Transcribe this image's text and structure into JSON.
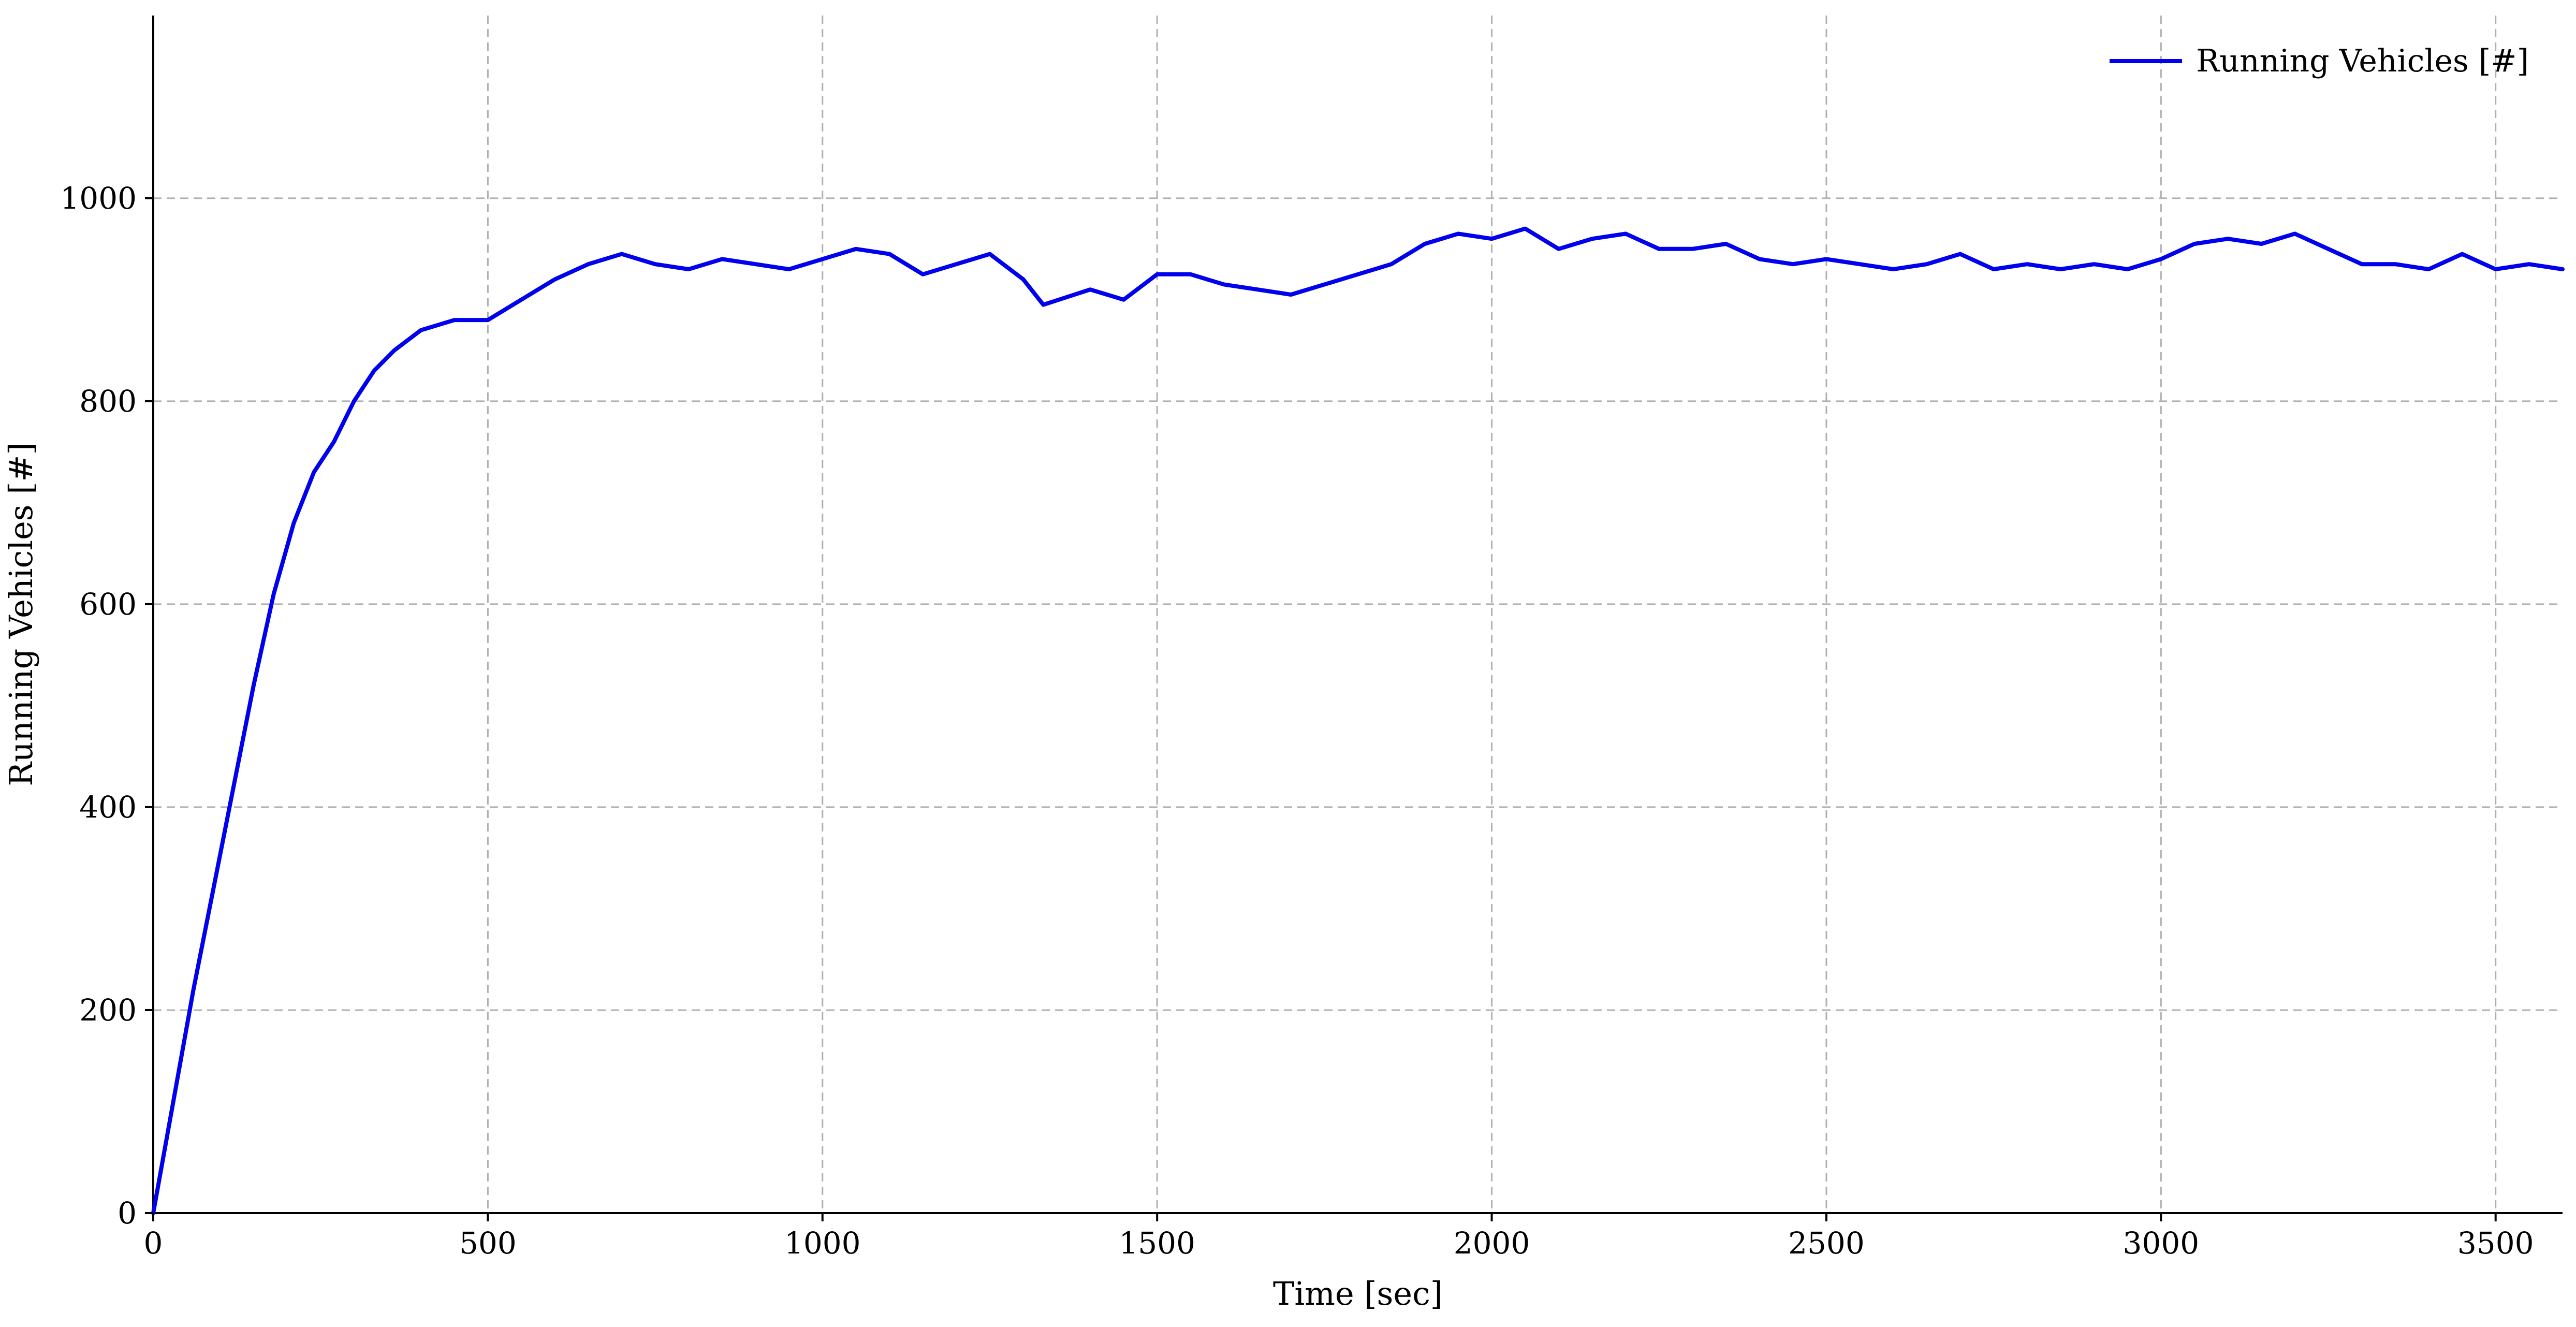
{
  "chart_data": {
    "type": "line",
    "title": "",
    "xlabel": "Time [sec]",
    "ylabel": "Running Vehicles [#]",
    "xlim": [
      0,
      3600
    ],
    "ylim": [
      0,
      1180
    ],
    "xticks": [
      0,
      500,
      1000,
      1500,
      2000,
      2500,
      3000,
      3500
    ],
    "yticks": [
      0,
      200,
      400,
      600,
      800,
      1000
    ],
    "grid": true,
    "legend_position": "top-right",
    "series": [
      {
        "name": "Running Vehicles [#]",
        "color": "#0000ee",
        "x": [
          0,
          30,
          60,
          90,
          120,
          150,
          180,
          210,
          240,
          270,
          300,
          330,
          360,
          400,
          450,
          500,
          550,
          600,
          650,
          700,
          750,
          800,
          850,
          900,
          950,
          1000,
          1050,
          1100,
          1150,
          1200,
          1250,
          1300,
          1330,
          1400,
          1450,
          1500,
          1550,
          1600,
          1650,
          1700,
          1750,
          1800,
          1850,
          1900,
          1950,
          2000,
          2050,
          2100,
          2150,
          2200,
          2250,
          2300,
          2350,
          2400,
          2450,
          2500,
          2550,
          2600,
          2650,
          2700,
          2750,
          2800,
          2850,
          2900,
          2950,
          3000,
          3050,
          3100,
          3150,
          3200,
          3250,
          3300,
          3350,
          3400,
          3450,
          3500,
          3550,
          3600
        ],
        "y": [
          0,
          110,
          220,
          320,
          420,
          520,
          610,
          680,
          730,
          760,
          800,
          830,
          850,
          870,
          880,
          880,
          900,
          920,
          935,
          945,
          935,
          930,
          940,
          935,
          930,
          940,
          950,
          945,
          925,
          935,
          945,
          920,
          895,
          910,
          900,
          925,
          925,
          915,
          910,
          905,
          915,
          925,
          935,
          955,
          965,
          960,
          970,
          950,
          960,
          965,
          950,
          950,
          955,
          940,
          935,
          940,
          935,
          930,
          935,
          945,
          930,
          935,
          930,
          935,
          930,
          940,
          955,
          960,
          955,
          965,
          950,
          935,
          935,
          930,
          945,
          930,
          935,
          930
        ]
      }
    ]
  }
}
